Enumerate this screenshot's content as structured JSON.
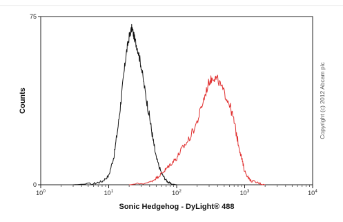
{
  "chart_data": {
    "type": "line",
    "xscale": "log",
    "xlim": [
      1,
      10000
    ],
    "ylim": [
      0,
      75
    ],
    "xlabel": "Sonic Hedgehog - DyLight® 488",
    "ylabel": "Counts",
    "x_ticks": [
      {
        "value": 1,
        "base": "10",
        "exp": "0"
      },
      {
        "value": 10,
        "base": "10",
        "exp": "1"
      },
      {
        "value": 100,
        "base": "10",
        "exp": "2"
      },
      {
        "value": 1000,
        "base": "10",
        "exp": "3"
      },
      {
        "value": 10000,
        "base": "10",
        "exp": "4"
      }
    ],
    "y_ticks": [
      {
        "value": 0,
        "label": "0"
      },
      {
        "value": 75,
        "label": "75"
      }
    ],
    "series": [
      {
        "color": "#111111",
        "x": [
          3,
          6,
          8,
          10,
          12,
          14,
          16,
          18,
          20,
          22,
          24,
          27,
          30,
          35,
          40,
          45,
          50,
          60,
          70,
          80,
          100
        ],
        "y": [
          0,
          0.5,
          1.5,
          4,
          13,
          28,
          44,
          58,
          66,
          70,
          65,
          60,
          53,
          40,
          30,
          20,
          12,
          5,
          2,
          0.5,
          0
        ]
      },
      {
        "color": "#e03030",
        "x": [
          20,
          40,
          50,
          60,
          70,
          80,
          100,
          120,
          150,
          200,
          250,
          300,
          350,
          400,
          500,
          600,
          700,
          800,
          900,
          1000,
          1200,
          1500,
          2000
        ],
        "y": [
          0,
          1,
          3,
          5,
          7,
          9,
          12,
          16,
          20,
          28,
          38,
          46,
          48,
          47,
          41,
          36,
          28,
          19,
          12,
          6,
          2,
          1,
          0
        ]
      }
    ],
    "grid": false,
    "legend": "none"
  },
  "copyright": "Copyright (c) 2012 Abcam plc"
}
